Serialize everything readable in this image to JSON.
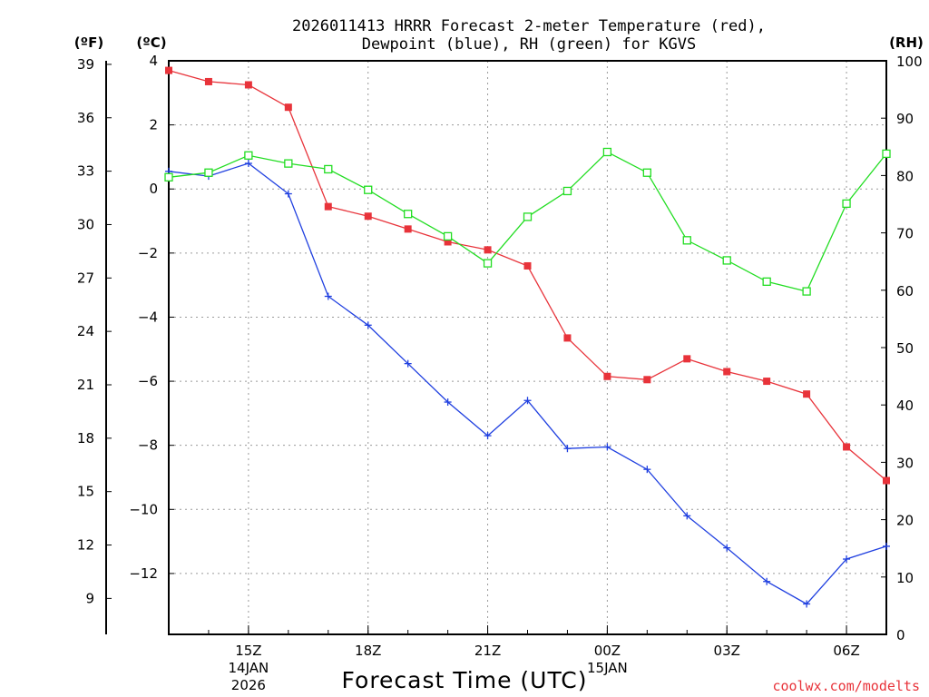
{
  "chart_data": {
    "type": "line",
    "title_line1": "2026011413 HRRR Forecast 2-meter Temperature (red),",
    "title_line2": "Dewpoint (blue), RH (green) for KGVS",
    "left_outer_axis": {
      "label": "(ºF)",
      "ticks": [
        "39",
        "36",
        "33",
        "30",
        "27",
        "24",
        "21",
        "18",
        "15",
        "12",
        "9"
      ]
    },
    "left_inner_axis": {
      "label": "(ºC)",
      "ticks": [
        "4",
        "2",
        "0",
        "−2",
        "−4",
        "−6",
        "−8",
        "−10",
        "−12"
      ],
      "ylim": [
        -13.9,
        4.0
      ]
    },
    "right_axis": {
      "label": "(RH)",
      "ticks": [
        "100",
        "90",
        "80",
        "70",
        "60",
        "50",
        "40",
        "30",
        "20",
        "10",
        "0"
      ],
      "ylim": [
        0,
        100
      ]
    },
    "xlabel": "Forecast Time (UTC)",
    "x_ticks": [
      {
        "label": "15Z",
        "x": 2
      },
      {
        "label": "18Z",
        "x": 5
      },
      {
        "label": "21Z",
        "x": 8
      },
      {
        "label": "00Z",
        "x": 11
      },
      {
        "label": "03Z",
        "x": 14
      },
      {
        "label": "06Z",
        "x": 17
      }
    ],
    "x_date_labels": [
      {
        "line1": "14JAN",
        "line2": "2026",
        "x": 2
      },
      {
        "line1": "15JAN",
        "line2": "",
        "x": 11
      }
    ],
    "xlim": [
      0,
      18
    ],
    "hours": [
      0,
      1,
      2,
      3,
      4,
      5,
      6,
      7,
      8,
      9,
      10,
      11,
      12,
      13,
      14,
      15,
      16,
      17,
      18
    ],
    "series": [
      {
        "name": "Temperature",
        "color": "#e8333a",
        "axis": "celsius",
        "marker": "filled-square",
        "values": [
          3.7,
          3.35,
          3.25,
          2.55,
          -0.55,
          -0.85,
          -1.25,
          -1.65,
          -1.9,
          -2.4,
          -4.65,
          -5.85,
          -5.95,
          -5.3,
          -5.7,
          -6.0,
          -6.4,
          -8.05,
          -9.1
        ]
      },
      {
        "name": "Dewpoint",
        "color": "#2040e0",
        "axis": "celsius",
        "marker": "plus",
        "values": [
          0.55,
          0.4,
          0.8,
          -0.15,
          -3.35,
          -4.25,
          -5.45,
          -6.65,
          -7.7,
          -6.6,
          -8.1,
          -8.05,
          -8.75,
          -10.2,
          -11.2,
          -12.25,
          -12.95,
          -11.55,
          -11.15
        ]
      },
      {
        "name": "RH",
        "color": "#22dd22",
        "axis": "rh",
        "marker": "open-square",
        "values": [
          79.7,
          80.5,
          83.5,
          82.1,
          81.1,
          77.5,
          73.3,
          69.4,
          64.7,
          72.8,
          77.3,
          84.1,
          80.5,
          68.7,
          65.2,
          61.5,
          59.8,
          75.1,
          83.8
        ]
      }
    ]
  },
  "credit": "coolwx.com/modelts",
  "colors": {
    "temperature": "#e8333a",
    "dewpoint": "#2040e0",
    "rh": "#22dd22",
    "credit": "#e8333a",
    "grid": "#9a9a9a"
  }
}
